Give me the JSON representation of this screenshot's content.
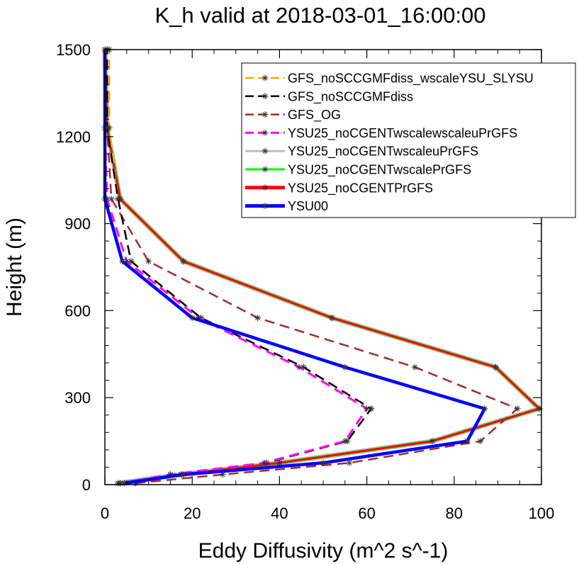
{
  "chart_data": {
    "type": "line",
    "title": "K_h valid at 2018-03-01_16:00:00",
    "xlabel": "Eddy Diffusivity (m^2 s^-1)",
    "ylabel": "Height (m)",
    "xlim": [
      0,
      100
    ],
    "ylim": [
      0,
      1500
    ],
    "xticks": [
      0,
      20,
      40,
      60,
      80,
      100
    ],
    "yticks": [
      0,
      300,
      600,
      900,
      1200,
      1500
    ],
    "xtick_labels": [
      "0",
      "20",
      "40",
      "60",
      "80",
      "100"
    ],
    "ytick_labels": [
      "0",
      "300",
      "600",
      "900",
      "1200",
      "1500"
    ],
    "grid": false,
    "legend_position": "top-right",
    "series": [
      {
        "name": "GFS_noSCCGMFdiss_wscaleYSU_SLYSU",
        "color": "#FFA500",
        "dash": "dash",
        "points": [
          [
            3.5,
            5
          ],
          [
            15,
            35
          ],
          [
            37,
            75
          ],
          [
            55.5,
            150
          ],
          [
            61,
            262
          ],
          [
            45.5,
            405
          ],
          [
            22,
            575
          ],
          [
            6,
            770
          ],
          [
            3,
            985
          ],
          [
            1,
            1230
          ],
          [
            1,
            1500
          ]
        ]
      },
      {
        "name": "GFS_noSCCGMFdiss",
        "color": "#000000",
        "dash": "dash",
        "points": [
          [
            3.5,
            5
          ],
          [
            15,
            35
          ],
          [
            37,
            75
          ],
          [
            55.5,
            150
          ],
          [
            61,
            262
          ],
          [
            45.5,
            405
          ],
          [
            22,
            575
          ],
          [
            6,
            770
          ],
          [
            3,
            985
          ],
          [
            0.5,
            1230
          ],
          [
            0.5,
            1500
          ]
        ]
      },
      {
        "name": "GFS_OG",
        "color": "#A52A2A",
        "dash": "dash",
        "points": [
          [
            7,
            5
          ],
          [
            27,
            35
          ],
          [
            56,
            75
          ],
          [
            86,
            150
          ],
          [
            94.5,
            262
          ],
          [
            71,
            405
          ],
          [
            35,
            575
          ],
          [
            10,
            770
          ],
          [
            1.5,
            985
          ],
          [
            0.5,
            1230
          ],
          [
            0.5,
            1500
          ]
        ]
      },
      {
        "name": "YSU25_noCGENTwscalewscaleuPrGFS",
        "color": "#FF00FF",
        "dash": "dash",
        "points": [
          [
            3.5,
            5
          ],
          [
            15,
            35
          ],
          [
            36.5,
            75
          ],
          [
            55,
            150
          ],
          [
            60,
            262
          ],
          [
            44.5,
            405
          ],
          [
            21.5,
            575
          ],
          [
            5,
            770
          ],
          [
            0.5,
            985
          ],
          [
            0,
            1230
          ],
          [
            0,
            1500
          ]
        ]
      },
      {
        "name": "YSU25_noCGENTwscaleuPrGFS",
        "color": "#BEBEBE",
        "dash": "solid",
        "points": [
          [
            3,
            5
          ],
          [
            17.5,
            35
          ],
          [
            40,
            75
          ],
          [
            75,
            150
          ],
          [
            99.5,
            262
          ],
          [
            89.5,
            405
          ],
          [
            52,
            575
          ],
          [
            18,
            770
          ],
          [
            3.5,
            985
          ],
          [
            0.5,
            1230
          ],
          [
            0,
            1500
          ]
        ]
      },
      {
        "name": "YSU25_noCGENTwscalePrGFS",
        "color": "#00FF00",
        "dash": "solid",
        "points": [
          [
            3,
            5
          ],
          [
            17.5,
            35
          ],
          [
            40,
            75
          ],
          [
            75,
            150
          ],
          [
            99.5,
            262
          ],
          [
            89.5,
            405
          ],
          [
            52,
            575
          ],
          [
            18,
            770
          ],
          [
            3.5,
            985
          ],
          [
            0.5,
            1230
          ],
          [
            0,
            1500
          ]
        ]
      },
      {
        "name": "YSU25_noCGENTPrGFS",
        "color": "#FF0000",
        "dash": "solid",
        "points": [
          [
            3,
            5
          ],
          [
            17.5,
            35
          ],
          [
            40,
            75
          ],
          [
            75,
            150
          ],
          [
            99.5,
            262
          ],
          [
            89.5,
            405
          ],
          [
            52,
            575
          ],
          [
            18,
            770
          ],
          [
            3.5,
            985
          ],
          [
            0.5,
            1230
          ],
          [
            0,
            1500
          ]
        ]
      },
      {
        "name": "YSU00",
        "color": "#0000FF",
        "dash": "solid",
        "points": [
          [
            4.5,
            5
          ],
          [
            18,
            35
          ],
          [
            50,
            75
          ],
          [
            83,
            150
          ],
          [
            87,
            262
          ],
          [
            55,
            405
          ],
          [
            20,
            575
          ],
          [
            4,
            770
          ],
          [
            0,
            985
          ],
          [
            0,
            1230
          ],
          [
            0,
            1500
          ]
        ]
      }
    ]
  }
}
